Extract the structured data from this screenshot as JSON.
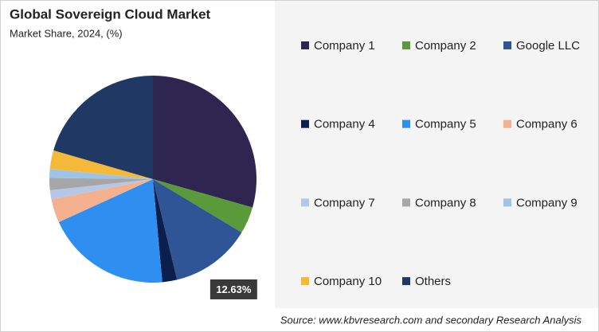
{
  "chart_data": {
    "type": "pie",
    "title": "Global Sovereign Cloud Market",
    "subtitle": "Market Share, 2024, (%)",
    "categories": [
      "Company 1",
      "Company 2",
      "Google LLC",
      "Company 4",
      "Company 5",
      "Company 6",
      "Company 7",
      "Company 8",
      "Company 9",
      "Company 10",
      "Others"
    ],
    "values": [
      29.4,
      4.2,
      12.63,
      2.3,
      19.6,
      3.7,
      1.4,
      1.9,
      1.4,
      2.9,
      20.5
    ],
    "value_labels": [
      null,
      null,
      "12.63%",
      null,
      null,
      null,
      null,
      null,
      null,
      null,
      null
    ],
    "colors": [
      "#2e2650",
      "#5b9a3a",
      "#2f5597",
      "#0b1f4f",
      "#2f8ff0",
      "#f4b18f",
      "#b4c7e7",
      "#a6a6a6",
      "#9dc3e6",
      "#f5b93a",
      "#203864"
    ],
    "source": "Source: www.kbvresearch.com and secondary Research Analysis"
  }
}
